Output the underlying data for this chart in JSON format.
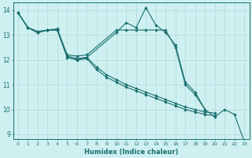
{
  "xlabel": "Humidex (Indice chaleur)",
  "background_color": "#cff0f0",
  "grid_color": "#aadddd",
  "line_color": "#1a7070",
  "xlim": [
    -0.5,
    23.5
  ],
  "ylim": [
    8.8,
    14.3
  ],
  "yticks": [
    9,
    10,
    11,
    12,
    13,
    14
  ],
  "xticks": [
    0,
    1,
    2,
    3,
    4,
    5,
    6,
    7,
    8,
    9,
    10,
    11,
    12,
    13,
    14,
    15,
    16,
    17,
    18,
    19,
    20,
    21,
    22,
    23
  ],
  "s1_x": [
    0,
    1,
    2,
    3,
    4,
    5,
    6,
    7,
    10,
    11,
    12,
    13,
    14,
    15,
    16,
    17,
    18,
    19,
    20,
    21,
    22,
    23
  ],
  "s1_y": [
    13.9,
    13.3,
    13.1,
    13.2,
    13.2,
    12.1,
    12.0,
    12.1,
    13.1,
    13.5,
    13.3,
    14.1,
    13.4,
    13.1,
    12.6,
    11.1,
    10.7,
    10.0,
    9.7,
    10.0,
    9.8,
    8.7
  ],
  "s2_x": [
    0,
    1,
    2,
    3,
    4,
    5,
    6,
    7,
    10,
    11,
    12,
    13,
    14,
    15,
    16,
    17,
    18,
    19
  ],
  "s2_y": [
    13.9,
    13.3,
    13.1,
    13.2,
    13.25,
    12.2,
    12.15,
    12.2,
    13.2,
    13.2,
    13.2,
    13.2,
    13.2,
    13.2,
    12.5,
    11.0,
    10.6,
    10.0
  ],
  "s3_x": [
    0,
    1,
    2,
    3,
    4,
    5,
    6,
    7,
    8,
    9,
    10,
    11,
    12,
    13,
    14,
    15,
    16,
    17,
    18,
    19,
    20
  ],
  "s3_y": [
    13.9,
    13.3,
    13.15,
    13.2,
    13.2,
    12.15,
    12.05,
    12.1,
    11.7,
    11.4,
    11.2,
    11.0,
    10.85,
    10.7,
    10.55,
    10.4,
    10.25,
    10.1,
    10.0,
    9.9,
    9.85
  ],
  "s4_x": [
    0,
    1,
    2,
    3,
    4,
    5,
    6,
    7,
    8,
    9,
    10,
    11,
    12,
    13,
    14,
    15,
    16,
    17,
    18,
    19,
    20
  ],
  "s4_y": [
    13.9,
    13.3,
    13.1,
    13.2,
    13.2,
    12.1,
    12.0,
    12.05,
    11.6,
    11.3,
    11.1,
    10.9,
    10.75,
    10.6,
    10.45,
    10.3,
    10.15,
    10.0,
    9.9,
    9.8,
    9.75
  ]
}
